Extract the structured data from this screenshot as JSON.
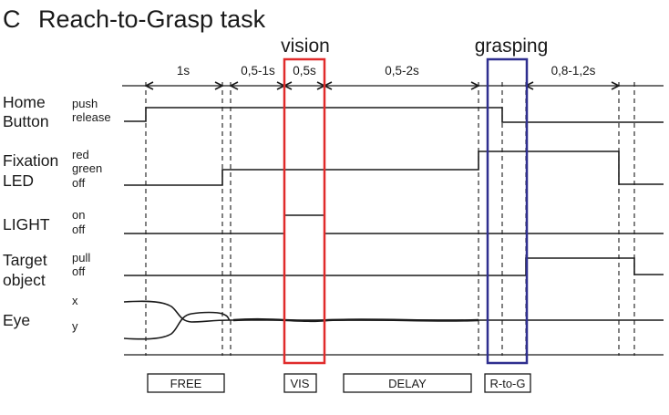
{
  "figure": {
    "panel_letter": "C",
    "title": "Reach-to-Grasp task",
    "highlight_vision": {
      "label": "vision",
      "color": "#e02b2b"
    },
    "highlight_grasping": {
      "label": "grasping",
      "color": "#2f2f8f"
    }
  },
  "durations": [
    "1s",
    "0,5-1s",
    "0,5s",
    "0,5-2s",
    "0,8-1,2s"
  ],
  "rows": [
    {
      "label_lines": [
        "Home",
        "Button"
      ],
      "states": [
        "push",
        "release"
      ]
    },
    {
      "label_lines": [
        "Fixation",
        "LED"
      ],
      "states": [
        "red",
        "green",
        "off"
      ]
    },
    {
      "label_lines": [
        "LIGHT"
      ],
      "states": [
        "on",
        "off"
      ]
    },
    {
      "label_lines": [
        "Target",
        "object"
      ],
      "states": [
        "pull",
        "off"
      ]
    },
    {
      "label_lines": [
        "Eye"
      ],
      "states": [
        "x",
        "y"
      ]
    }
  ],
  "phases": [
    "FREE",
    "VIS",
    "DELAY",
    "R-to-G"
  ]
}
